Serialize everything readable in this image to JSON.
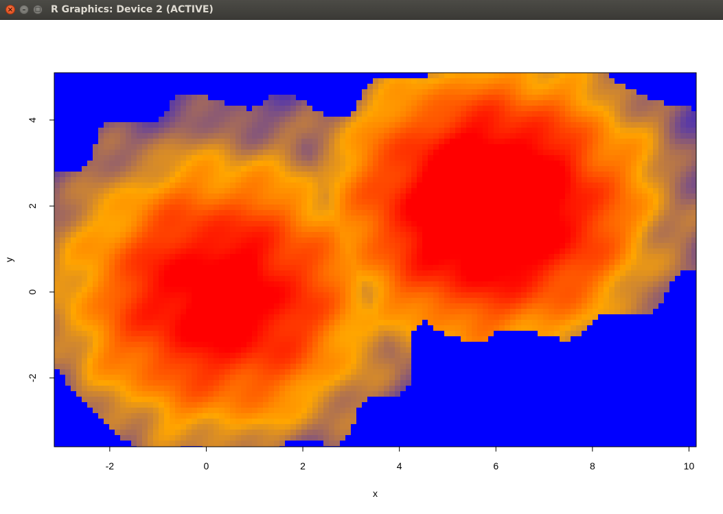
{
  "window": {
    "title": "R Graphics: Device 2 (ACTIVE)",
    "buttons": {
      "close": "×",
      "minimize": "–",
      "maximize": "□"
    }
  },
  "chart_data": {
    "type": "heatmap",
    "title": "",
    "xlabel": "x",
    "ylabel": "y",
    "xlim": [
      -3.15,
      10.15
    ],
    "ylim": [
      -3.6,
      5.1
    ],
    "xticks": [
      -2,
      0,
      2,
      4,
      6,
      8,
      10
    ],
    "yticks": [
      -2,
      0,
      2,
      4
    ],
    "colors": {
      "low": "#0000ff",
      "mid": "#ffa500",
      "high": "#ff0000"
    },
    "peaks": [
      {
        "x": 0.3,
        "y": -0.1,
        "value": 0.85
      },
      {
        "x": 5.9,
        "y": 2.0,
        "value": 1.0
      }
    ],
    "grid": false
  }
}
